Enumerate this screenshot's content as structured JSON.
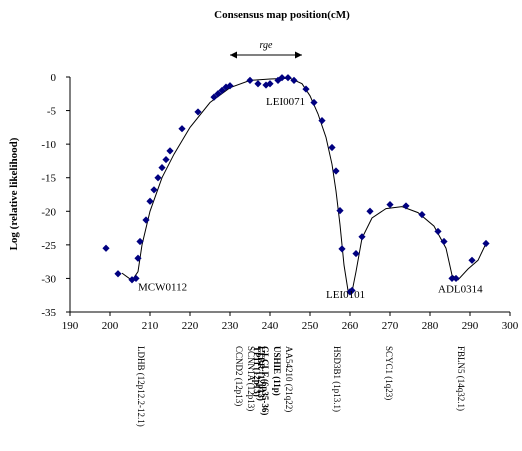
{
  "chart_data": {
    "type": "scatter",
    "title": "Consensus map position(cM)",
    "ylabel": "Log (relative likelihood)",
    "xlabel": "",
    "xlim": [
      190,
      300
    ],
    "ylim": [
      -35,
      0
    ],
    "xticks": [
      190,
      200,
      210,
      220,
      230,
      240,
      250,
      260,
      270,
      280,
      290,
      300
    ],
    "yticks": [
      0,
      -5,
      -10,
      -15,
      -20,
      -25,
      -30,
      -35
    ],
    "grid": false,
    "legend": "none",
    "colors": {
      "points": "#000080",
      "curve": "#000000",
      "axes": "#000000"
    },
    "range_annotation": {
      "label": "rge",
      "from": 230,
      "to": 248
    },
    "points": [
      [
        199,
        -25.5
      ],
      [
        202,
        -29.3
      ],
      [
        205.5,
        -30.2
      ],
      [
        206.5,
        -30.0
      ],
      [
        207,
        -27.0
      ],
      [
        207.5,
        -24.5
      ],
      [
        209,
        -21.3
      ],
      [
        210,
        -18.5
      ],
      [
        211,
        -16.8
      ],
      [
        212,
        -15.0
      ],
      [
        213,
        -13.5
      ],
      [
        214,
        -12.3
      ],
      [
        215,
        -11.0
      ],
      [
        218,
        -7.7
      ],
      [
        222,
        -5.2
      ],
      [
        226,
        -3.0
      ],
      [
        227,
        -2.5
      ],
      [
        228,
        -2.0
      ],
      [
        229,
        -1.5
      ],
      [
        230,
        -1.3
      ],
      [
        235,
        -0.5
      ],
      [
        237,
        -1.0
      ],
      [
        239,
        -1.2
      ],
      [
        240,
        -1.0
      ],
      [
        242,
        -0.5
      ],
      [
        243,
        -0.1
      ],
      [
        244.5,
        -0.1
      ],
      [
        246,
        -0.5
      ],
      [
        249,
        -1.8
      ],
      [
        251,
        -3.8
      ],
      [
        253,
        -6.5
      ],
      [
        255.5,
        -10.5
      ],
      [
        256.5,
        -14.0
      ],
      [
        257.5,
        -19.9
      ],
      [
        258,
        -25.6
      ],
      [
        260,
        -32.0
      ],
      [
        260.5,
        -31.8
      ],
      [
        261.5,
        -26.3
      ],
      [
        263,
        -23.8
      ],
      [
        265,
        -20.0
      ],
      [
        270,
        -19.0
      ],
      [
        274,
        -19.2
      ],
      [
        278,
        -20.5
      ],
      [
        282,
        -23.0
      ],
      [
        283.5,
        -24.5
      ],
      [
        285.5,
        -30.0
      ],
      [
        286.5,
        -30.0
      ],
      [
        290.5,
        -27.3
      ],
      [
        294,
        -24.8
      ]
    ],
    "curve": [
      [
        203,
        -29.2
      ],
      [
        205.5,
        -30.3
      ],
      [
        207,
        -29.0
      ],
      [
        208,
        -25.0
      ],
      [
        210,
        -20.0
      ],
      [
        213,
        -15.0
      ],
      [
        216,
        -11.5
      ],
      [
        220,
        -7.5
      ],
      [
        225,
        -3.8
      ],
      [
        230,
        -1.6
      ],
      [
        235,
        -0.5
      ],
      [
        240,
        -0.3
      ],
      [
        245,
        -0.2
      ],
      [
        248,
        -1.0
      ],
      [
        250,
        -2.8
      ],
      [
        252,
        -5.5
      ],
      [
        254,
        -9.0
      ],
      [
        255.5,
        -13.0
      ],
      [
        256.5,
        -17.0
      ],
      [
        257.5,
        -22.0
      ],
      [
        258.5,
        -28.0
      ],
      [
        259.5,
        -31.8
      ],
      [
        260.5,
        -32.0
      ],
      [
        261.5,
        -29.0
      ],
      [
        263,
        -24.0
      ],
      [
        265.5,
        -21.0
      ],
      [
        269,
        -19.6
      ],
      [
        273,
        -19.3
      ],
      [
        277,
        -20.2
      ],
      [
        281,
        -22.2
      ],
      [
        284,
        -25.5
      ],
      [
        285.5,
        -29.5
      ],
      [
        287,
        -30.2
      ],
      [
        289.5,
        -28.6
      ],
      [
        292,
        -27.3
      ],
      [
        294,
        -24.8
      ]
    ],
    "marker_labels": [
      {
        "text": "MCW0112",
        "x": 207,
        "y": -31.2
      },
      {
        "text": "LEI0071",
        "x": 239,
        "y": -3.6
      },
      {
        "text": "LEI0101",
        "x": 254,
        "y": -32.3
      },
      {
        "text": "ADL0314",
        "x": 282,
        "y": -31.5
      }
    ],
    "gene_labels": [
      {
        "text": "LDHB (12p12.2-12.1)",
        "x": 207.5,
        "bold": false
      },
      {
        "text": "CCND2 (12p13)",
        "x": 232,
        "bold": false
      },
      {
        "text": "SCNN1A (12p13)",
        "x": 235,
        "bold": false
      },
      {
        "text": "TPI1 (12p13)",
        "x": 236.5,
        "bold": true
      },
      {
        "text": "LTBR (12p13)",
        "x": 237.5,
        "bold": true
      },
      {
        "text": "GLCLF (6p35-36)",
        "x": 238.5,
        "bold": true
      },
      {
        "text": "USHIE (11p)",
        "x": 241.5,
        "bold": true
      },
      {
        "text": "AA54210 (21q22)",
        "x": 244.5,
        "bold": false
      },
      {
        "text": "HSD3B1 (1p13.1)",
        "x": 256.5,
        "bold": false
      },
      {
        "text": "SCYC1 (1q23)",
        "x": 269.5,
        "bold": false
      },
      {
        "text": "FBLN5 (14q32.1)",
        "x": 287.5,
        "bold": false
      }
    ]
  }
}
